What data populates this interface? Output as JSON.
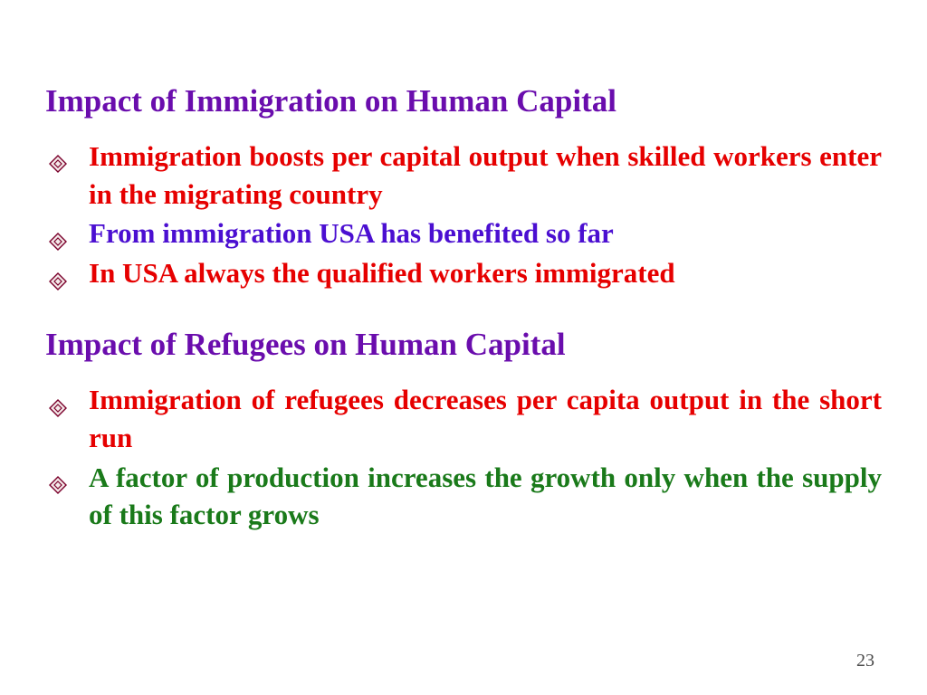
{
  "colors": {
    "heading": "#6a0dad",
    "red": "#e60000",
    "blue": "#4b0fd1",
    "green": "#1a7a1a",
    "bullet_fill": "#f5eaea",
    "bullet_stroke": "#7a002b",
    "page_number": "#4a4a4a",
    "background": "#ffffff"
  },
  "typography": {
    "heading_fontsize": 35,
    "body_fontsize": 31,
    "font_family": "Times New Roman"
  },
  "section1": {
    "title": "Impact of Immigration on Human Capital",
    "bullets": [
      {
        "text": "Immigration boosts per capital output when skilled workers enter in the migrating country",
        "color": "red"
      },
      {
        "text": "From immigration USA has benefited so far",
        "color": "blue"
      },
      {
        "text": "In USA always the qualified workers immigrated",
        "color": "red"
      }
    ]
  },
  "section2": {
    "title": "Impact of Refugees on Human Capital",
    "bullets": [
      {
        "text": "Immigration of refugees decreases per capita output in the short run",
        "color": "red"
      },
      {
        "text": "A factor of production increases the growth only when the supply of this factor grows",
        "color": "green"
      }
    ]
  },
  "page_number": "23"
}
